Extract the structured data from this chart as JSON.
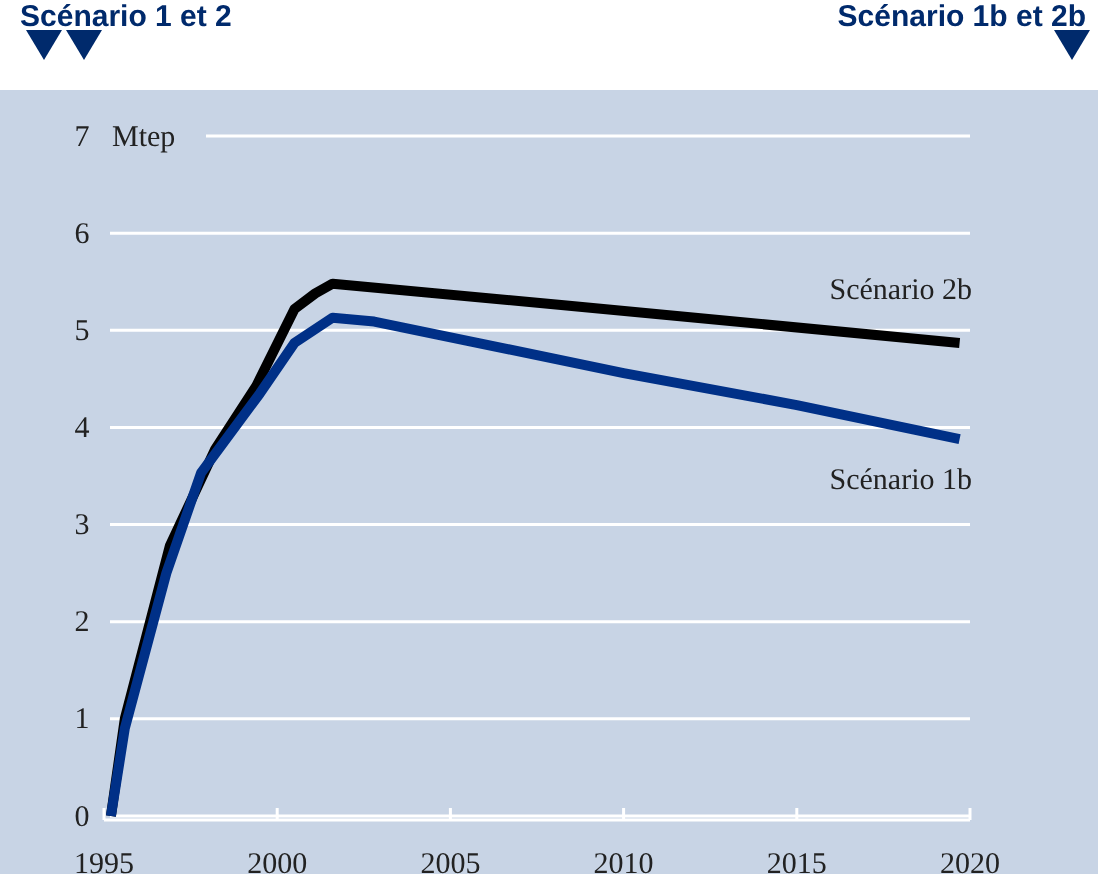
{
  "chart_data": {
    "type": "line",
    "ylabel": "Mtep",
    "annotations": [
      "Scénario 1 et 2",
      "Scénario 1b et 2b"
    ],
    "xlim": [
      1995,
      2020
    ],
    "xticks": [
      1995,
      2000,
      2005,
      2010,
      2015,
      2020
    ],
    "ylim": [
      0,
      7
    ],
    "yticks": [
      0,
      1,
      2,
      3,
      4,
      5,
      6,
      7
    ],
    "grid": "y",
    "marker": "none",
    "line_style": "solid",
    "series": [
      {
        "name": "Scénario 2b",
        "color": "#000000",
        "x": [
          1995.2,
          1995.6,
          1996.9,
          1998.2,
          1999.4,
          2000.5,
          2001.1,
          2001.6,
          2008.2,
          2019.7
        ],
        "values": [
          0,
          1.0,
          2.78,
          3.77,
          4.43,
          5.22,
          5.38,
          5.48,
          5.26,
          4.87
        ]
      },
      {
        "name": "Scénario 1b",
        "color": "#003087",
        "x": [
          1995.2,
          1995.6,
          1996.8,
          1997.8,
          1999.5,
          2000.5,
          2001.6,
          2002.8,
          2010,
          2015,
          2019.7
        ],
        "values": [
          0,
          0.9,
          2.5,
          3.53,
          4.35,
          4.87,
          5.13,
          5.09,
          4.56,
          4.23,
          3.88
        ]
      }
    ]
  }
}
